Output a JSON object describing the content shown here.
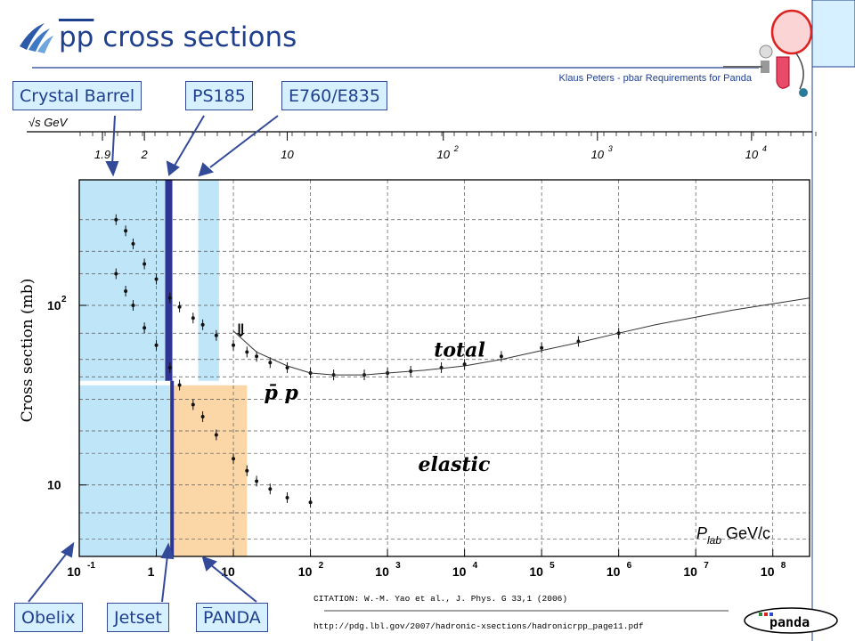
{
  "header": {
    "title_prefix": "pp",
    "title_rest": " cross sections",
    "subtitle": "Klaus Peters - pbar Requirements for Panda"
  },
  "labels": {
    "crystal_barrel": "Crystal Barrel",
    "ps185": "PS185",
    "e760": "E760/E835",
    "obelix": "Obelix",
    "jetset": "Jetset",
    "panda_bar": "P",
    "panda_rest": "ANDA"
  },
  "footer": {
    "citation": "CITATION: W.-M. Yao et al., J. Phys. G 33,1 (2006)",
    "url": "http://pdg.lbl.gov/2007/hadronic-xsections/hadronicrpp_page11.pdf",
    "logo_text": "panda"
  },
  "colors": {
    "title_blue": "#1f3f8f",
    "label_fill": "#d6f0ff",
    "cyan_band": "#a9dcf5",
    "orange_band": "#f9c98a",
    "beam_bar": "#2e3592",
    "arrow": "#334a99"
  },
  "chart_data": {
    "type": "scatter",
    "ylabel": "Cross section (mb)",
    "top_axis_label": "√s GeV",
    "xlabel_parts": [
      "P",
      "lab",
      " GeV/c"
    ],
    "x_scale": "log",
    "y_scale": "log",
    "xlim": [
      0.1,
      300000000
    ],
    "ylim": [
      4,
      500
    ],
    "x_ticks": [
      {
        "label": "10",
        "exp": "-1",
        "value": 0.1
      },
      {
        "label": "1",
        "exp": "",
        "value": 1
      },
      {
        "label": "10",
        "exp": "",
        "value": 10
      },
      {
        "label": "10",
        "exp": "2",
        "value": 100
      },
      {
        "label": "10",
        "exp": "3",
        "value": 1000
      },
      {
        "label": "10",
        "exp": "4",
        "value": 10000
      },
      {
        "label": "10",
        "exp": "5",
        "value": 100000
      },
      {
        "label": "10",
        "exp": "6",
        "value": 1000000
      },
      {
        "label": "10",
        "exp": "7",
        "value": 10000000
      },
      {
        "label": "10",
        "exp": "8",
        "value": 100000000
      }
    ],
    "y_ticks": [
      {
        "label": "10",
        "exp": "",
        "value": 10
      },
      {
        "label": "10",
        "exp": "2",
        "value": 100
      }
    ],
    "top_ticks": [
      {
        "label": "1.9",
        "value": 1.9
      },
      {
        "label": "2",
        "value": 2
      },
      {
        "label": "10",
        "value": 10
      },
      {
        "label": "10",
        "exp": "2",
        "value": 100
      },
      {
        "label": "10",
        "exp": "3",
        "value": 1000
      },
      {
        "label": "10",
        "exp": "4",
        "value": 10000
      }
    ],
    "grid": true,
    "annotations": [
      {
        "text": "total",
        "x": 4000,
        "y": 52
      },
      {
        "text": "elastic",
        "x": 2500,
        "y": 12
      },
      {
        "text": "p̄ p",
        "x": 25,
        "y": 30
      },
      {
        "text": "⇓",
        "x": 10,
        "y": 67
      }
    ],
    "regions": [
      {
        "name": "Crystal Barrel",
        "x": [
          0.1,
          1.5
        ],
        "color": "cyan"
      },
      {
        "name": "E760/E835",
        "x": [
          3.5,
          6.5
        ],
        "color": "cyan"
      },
      {
        "name": "Obelix",
        "x": [
          0.1,
          1.5
        ],
        "color": "cyan"
      },
      {
        "name": "PANDA",
        "x": [
          1.5,
          15
        ],
        "color": "orange"
      }
    ],
    "beam_lines": [
      {
        "name": "PS185",
        "x": 1.45,
        "y": [
          38,
          500
        ]
      },
      {
        "name": "Jetset",
        "x": 1.6,
        "y": [
          4,
          38
        ]
      }
    ],
    "series": [
      {
        "name": "total",
        "x": [
          0.3,
          0.4,
          0.5,
          0.7,
          1,
          1.5,
          2,
          3,
          4,
          6,
          10,
          15,
          20,
          30,
          50,
          100,
          200,
          500,
          1000,
          2000,
          5000,
          10000,
          30000,
          100000,
          300000,
          1000000
        ],
        "y": [
          300,
          260,
          220,
          170,
          140,
          110,
          98,
          85,
          78,
          68,
          60,
          55,
          52,
          48,
          45,
          42,
          41,
          41,
          42,
          43,
          45,
          47,
          52,
          58,
          63,
          70
        ]
      },
      {
        "name": "elastic",
        "x": [
          0.3,
          0.4,
          0.5,
          0.7,
          1,
          1.5,
          2,
          3,
          4,
          6,
          10,
          15,
          20,
          30,
          50,
          100
        ],
        "y": [
          150,
          120,
          100,
          75,
          60,
          45,
          36,
          28,
          24,
          19,
          14,
          12,
          10.5,
          9.5,
          8.5,
          8
        ]
      },
      {
        "name": "fit",
        "x": [
          10,
          20,
          50,
          100,
          200,
          500,
          1000,
          3000,
          10000,
          30000,
          100000,
          300000,
          1000000,
          3000000,
          10000000,
          30000000,
          100000000,
          300000000
        ],
        "y": [
          72,
          55,
          46,
          42,
          41,
          41,
          42,
          43.5,
          46,
          50,
          56,
          62,
          70,
          78,
          86,
          94,
          102,
          110
        ]
      }
    ]
  }
}
